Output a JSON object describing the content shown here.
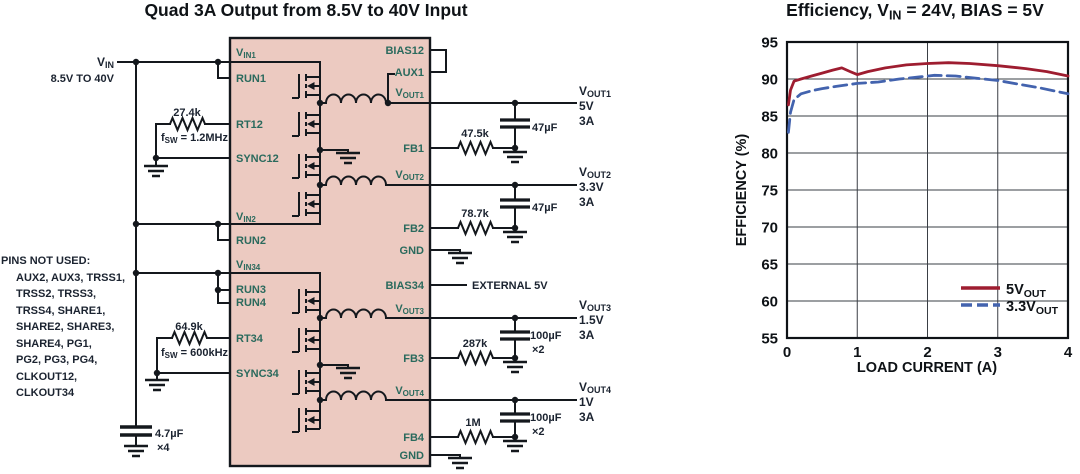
{
  "colors": {
    "ic_fill": "#eccac1",
    "pin_label": "#2a6a5d",
    "ink": "#14181d",
    "series_5v": "#9e1d30",
    "series_3v3": "#4363ae"
  },
  "circuit": {
    "title": "Quad 3A Output from 8.5V to 40V Input",
    "input": {
      "sym": "V",
      "sub": "IN",
      "range": "8.5V TO 40V"
    },
    "left_pins": {
      "vin1": {
        "sym": "V",
        "sub": "IN1"
      },
      "run1": "RUN1",
      "rt12": "RT12",
      "sync12": "SYNC12",
      "vin2": {
        "sym": "V",
        "sub": "IN2"
      },
      "run2": "RUN2",
      "vin34": {
        "sym": "V",
        "sub": "IN34"
      },
      "run3": "RUN3",
      "run4": "RUN4",
      "rt34": "RT34",
      "sync34": "SYNC34"
    },
    "right_pins": {
      "bias12": "BIAS12",
      "aux1": "AUX1",
      "vout1": {
        "sym": "V",
        "sub": "OUT1"
      },
      "fb1": "FB1",
      "vout2": {
        "sym": "V",
        "sub": "OUT2"
      },
      "fb2": "FB2",
      "gnd12": "GND",
      "bias34": "BIAS34",
      "vout3": {
        "sym": "V",
        "sub": "OUT3"
      },
      "fb3": "FB3",
      "vout4": {
        "sym": "V",
        "sub": "OUT4"
      },
      "fb4": "FB4",
      "gnd34": "GND"
    },
    "rt12": {
      "res": "27.4k",
      "fsw_sym": "f",
      "fsw_sub": "SW",
      "fsw_eq": " = 1.2MHz"
    },
    "rt34": {
      "res": "64.9k",
      "fsw_sym": "f",
      "fsw_sub": "SW",
      "fsw_eq": " = 600kHz"
    },
    "input_cap": {
      "value": "4.7µF",
      "mult": "×4"
    },
    "bias34_net": "EXTERNAL 5V",
    "outputs": [
      {
        "sym": "V",
        "sub": "OUT1",
        "volts": "5V",
        "amps": "3A",
        "fb_res": "47.5k",
        "cap": "47µF",
        "cap_mult": ""
      },
      {
        "sym": "V",
        "sub": "OUT2",
        "volts": "3.3V",
        "amps": "3A",
        "fb_res": "78.7k",
        "cap": "47µF",
        "cap_mult": ""
      },
      {
        "sym": "V",
        "sub": "OUT3",
        "volts": "1.5V",
        "amps": "3A",
        "fb_res": "287k",
        "cap": "100µF",
        "cap_mult": "×2"
      },
      {
        "sym": "V",
        "sub": "OUT4",
        "volts": "1V",
        "amps": "3A",
        "fb_res": "1M",
        "cap": "100µF",
        "cap_mult": "×2"
      }
    ],
    "pins_not_used": {
      "heading": "PINS NOT USED:",
      "lines": [
        "AUX2, AUX3, TRSS1,",
        "TRSS2, TRSS3,",
        "TRSS4, SHARE1,",
        "SHARE2, SHARE3,",
        "SHARE4, PG1,",
        "PG2, PG3, PG4,",
        "CLKOUT12,",
        "CLKOUT34"
      ]
    }
  },
  "chart_data": {
    "type": "line",
    "title_parts": {
      "pre": "Efficiency, V",
      "sub": "IN",
      "post": " = 24V, BIAS = 5V"
    },
    "xlabel": "LOAD CURRENT (A)",
    "ylabel": "EFFICIENCY (%)",
    "xlim": [
      0,
      4
    ],
    "ylim": [
      55,
      95
    ],
    "xticks": [
      0,
      1,
      2,
      3,
      4
    ],
    "yticks": [
      55,
      60,
      65,
      70,
      75,
      80,
      85,
      90,
      95
    ],
    "grid": true,
    "legend_position": "lower right",
    "series": [
      {
        "name_pre": "5V",
        "name_sub": "OUT",
        "color": "#9e1d30",
        "style": "solid",
        "x": [
          0.02,
          0.05,
          0.1,
          0.2,
          0.35,
          0.5,
          0.65,
          0.78,
          0.9,
          1.0,
          1.15,
          1.4,
          1.7,
          2.0,
          2.3,
          2.6,
          3.0,
          3.4,
          3.7,
          4.0
        ],
        "y": [
          86.5,
          88.5,
          89.7,
          90.0,
          90.4,
          90.8,
          91.2,
          91.5,
          91.0,
          90.6,
          91.0,
          91.5,
          91.9,
          92.1,
          92.2,
          92.1,
          91.8,
          91.4,
          91.0,
          90.4
        ]
      },
      {
        "name_pre": "3.3V",
        "name_sub": "OUT",
        "color": "#4363ae",
        "style": "dashed",
        "x": [
          0.02,
          0.05,
          0.1,
          0.2,
          0.35,
          0.5,
          0.7,
          1.0,
          1.3,
          1.6,
          1.9,
          2.1,
          2.4,
          2.7,
          3.0,
          3.3,
          3.6,
          4.0
        ],
        "y": [
          82.8,
          85.5,
          87.2,
          88.0,
          88.4,
          88.7,
          89.0,
          89.4,
          89.6,
          90.0,
          90.3,
          90.5,
          90.4,
          90.1,
          89.8,
          89.3,
          88.8,
          88.0
        ]
      }
    ]
  }
}
